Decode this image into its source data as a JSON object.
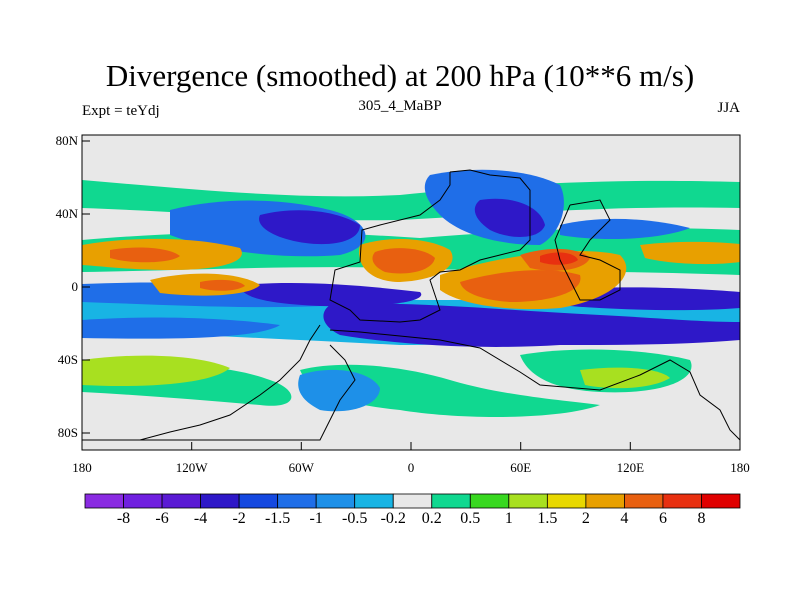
{
  "title": "Divergence (smoothed) at 200 hPa (10**6 m/s)",
  "subtitle_left": "Expt = teYdj",
  "subtitle_center": "305_4_MaBP",
  "subtitle_right": "JJA",
  "lat_labels": [
    "80N",
    "40N",
    "0",
    "40S",
    "80S"
  ],
  "lon_labels": [
    "180",
    "120W",
    "60W",
    "0",
    "60E",
    "120E",
    "180"
  ],
  "colorbar": {
    "colors": [
      "#8a2be2",
      "#7020e0",
      "#5a1ad4",
      "#2e18c8",
      "#1448e0",
      "#1f6ee8",
      "#1e90e8",
      "#18b4e4",
      "#e8e8e8",
      "#10d890",
      "#38d820",
      "#a8e020",
      "#e8d800",
      "#e8a000",
      "#e86010",
      "#e83010",
      "#e00000"
    ],
    "labels": [
      "-8",
      "-6",
      "-4",
      "-2",
      "-1.5",
      "-1",
      "-0.5",
      "-0.2",
      "0.2",
      "0.5",
      "1",
      "1.5",
      "2",
      "4",
      "6",
      "8"
    ]
  }
}
